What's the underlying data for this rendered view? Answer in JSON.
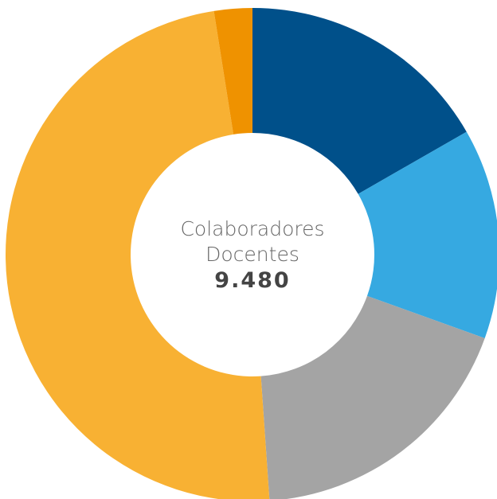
{
  "chart_data": {
    "type": "donut",
    "values": [
      16.7,
      13.8,
      18.4,
      48.6,
      2.5
    ],
    "colors": [
      "#00508a",
      "#36a9e1",
      "#a4a4a4",
      "#f8b133",
      "#ef9200"
    ],
    "center_title": "Colaboradores Docentes",
    "center_value": "9.480"
  }
}
